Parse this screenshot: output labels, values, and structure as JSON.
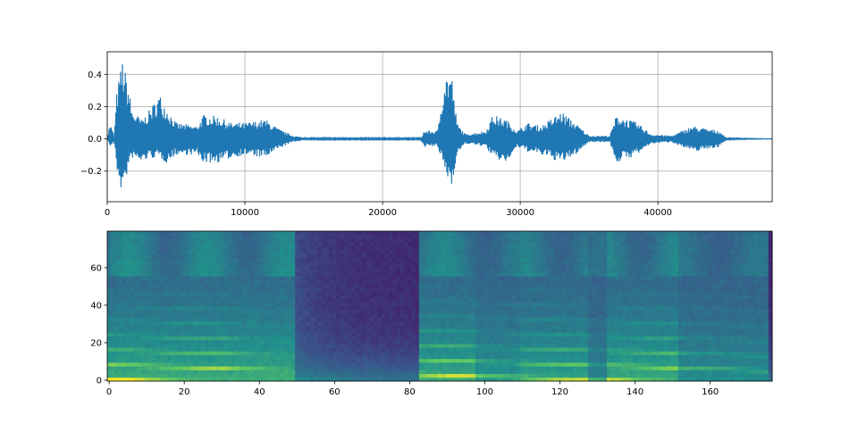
{
  "chart_data": [
    {
      "type": "line",
      "title": "",
      "xlabel": "",
      "ylabel": "",
      "xlim": [
        0,
        48300
      ],
      "ylim": [
        -0.39,
        0.54
      ],
      "grid": true,
      "color": "#1f77b4",
      "xticks": [
        0,
        10000,
        20000,
        30000,
        40000
      ],
      "xtick_labels": [
        "0",
        "10000",
        "20000",
        "30000",
        "40000"
      ],
      "yticks": [
        -0.2,
        0.0,
        0.2,
        0.4
      ],
      "ytick_labels": [
        "−0.2",
        "0.0",
        "0.2",
        "0.4"
      ],
      "envelope": {
        "x": [
          0,
          200,
          500,
          700,
          1100,
          1500,
          1800,
          2500,
          3000,
          3800,
          4300,
          5000,
          6500,
          7000,
          8000,
          9000,
          10000,
          11500,
          12500,
          13500,
          14500,
          22800,
          23000,
          24000,
          24500,
          25000,
          25400,
          26000,
          27500,
          28000,
          29000,
          29800,
          30500,
          31500,
          33000,
          34000,
          35000,
          36500,
          37000,
          38500,
          39500,
          41000,
          42500,
          44500,
          45000,
          48300
        ],
        "upper": [
          0,
          0.1,
          0.02,
          0.3,
          0.5,
          0.35,
          0.18,
          0.12,
          0.17,
          0.28,
          0.2,
          0.1,
          0.08,
          0.15,
          0.14,
          0.1,
          0.1,
          0.12,
          0.06,
          0.02,
          0.005,
          0.005,
          0.05,
          0.05,
          0.4,
          0.42,
          0.1,
          0.03,
          0.05,
          0.15,
          0.12,
          0.05,
          0.1,
          0.08,
          0.17,
          0.1,
          0.02,
          0.02,
          0.15,
          0.1,
          0.03,
          0.02,
          0.08,
          0.05,
          0.005,
          0
        ],
        "lower": [
          0,
          -0.05,
          -0.02,
          -0.2,
          -0.35,
          -0.2,
          -0.12,
          -0.15,
          -0.12,
          -0.12,
          -0.15,
          -0.1,
          -0.1,
          -0.15,
          -0.15,
          -0.12,
          -0.1,
          -0.12,
          -0.06,
          -0.02,
          -0.005,
          -0.005,
          -0.05,
          -0.05,
          -0.2,
          -0.3,
          -0.1,
          -0.03,
          -0.05,
          -0.12,
          -0.15,
          -0.05,
          -0.08,
          -0.1,
          -0.15,
          -0.1,
          -0.02,
          -0.02,
          -0.15,
          -0.1,
          -0.03,
          -0.02,
          -0.08,
          -0.05,
          -0.005,
          0
        ]
      }
    },
    {
      "type": "heatmap",
      "title": "",
      "xlabel": "",
      "ylabel": "",
      "colormap": "viridis",
      "origin": "lower",
      "xlim": [
        -0.5,
        176.5
      ],
      "ylim": [
        -0.5,
        79.5
      ],
      "xticks": [
        0,
        20,
        40,
        60,
        80,
        100,
        120,
        140,
        160
      ],
      "xtick_labels": [
        "0",
        "20",
        "40",
        "60",
        "80",
        "100",
        "120",
        "140",
        "160"
      ],
      "yticks": [
        0,
        20,
        40,
        60
      ],
      "ytick_labels": [
        "0",
        "20",
        "40",
        "60"
      ]
    }
  ]
}
